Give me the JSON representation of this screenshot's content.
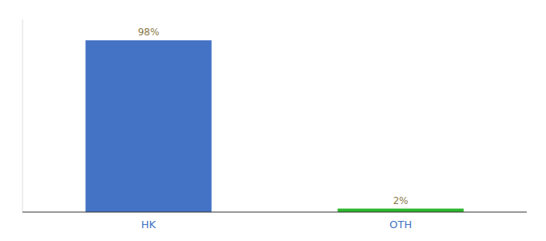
{
  "chart_data": {
    "type": "bar",
    "categories": [
      "HK",
      "OTH"
    ],
    "values": [
      98,
      2
    ],
    "value_labels": [
      "98%",
      "2%"
    ],
    "colors": [
      "#4472c4",
      "#2db82d"
    ],
    "ylim": [
      0,
      110
    ],
    "data_labels": true,
    "tick_labels": "x"
  }
}
